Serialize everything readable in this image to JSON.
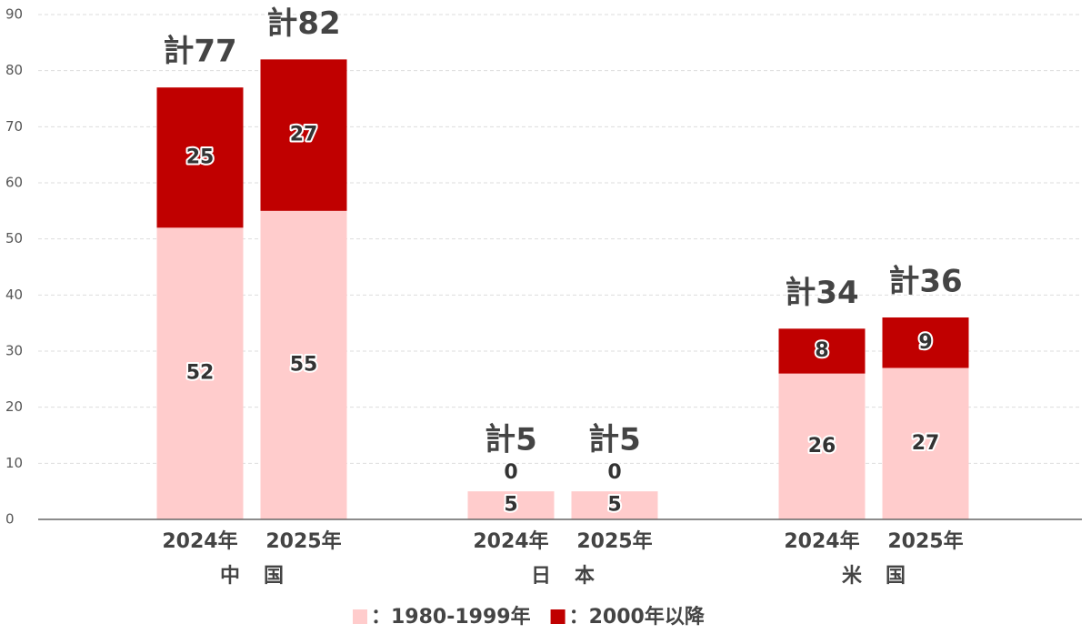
{
  "chart_data": {
    "type": "stacked_bar",
    "categories": [
      "2024年",
      "2025年",
      "2024年",
      "2025年",
      "2024年",
      "2025年"
    ],
    "group_labels": [
      "中",
      "国",
      "日",
      "本",
      "米",
      "国"
    ],
    "series": [
      {
        "name": "：1980-1999年",
        "color": "#ffcccc",
        "values": [
          52,
          55,
          5,
          5,
          26,
          27
        ]
      },
      {
        "name": "：2000年以降",
        "color": "#c00000",
        "values": [
          25,
          27,
          0,
          0,
          8,
          9
        ]
      }
    ],
    "totals": {
      "values": [
        77,
        82,
        5,
        5,
        34,
        36
      ],
      "value_labels": [
        "計77",
        "計82",
        "計5",
        "計5",
        "計34",
        "計36"
      ]
    },
    "ylim": [
      0,
      90
    ],
    "yticks": [
      0,
      10,
      20,
      30,
      40,
      50,
      60,
      70,
      80,
      90
    ],
    "grid": true,
    "legend": "bottom"
  }
}
